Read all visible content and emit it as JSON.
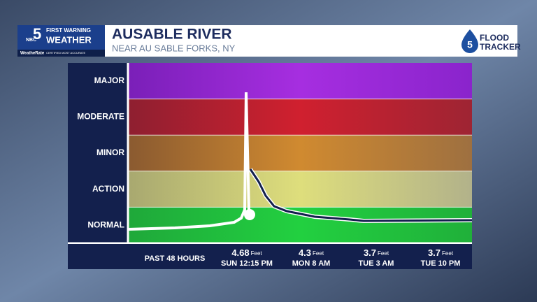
{
  "header": {
    "logo": {
      "network": "NBC",
      "channel": "5",
      "line1": "FIRST WARNING",
      "line2": "WEATHER",
      "line3": "WeatheRate",
      "line4": "CERTIFIED MOST ACCURATE"
    },
    "title": "AUSABLE RIVER",
    "subtitle": "NEAR AU SABLE FORKS, NY",
    "brand": {
      "channel": "5",
      "line1": "FLOOD",
      "line2": "TRACKER"
    }
  },
  "stages": [
    "MAJOR",
    "MODERATE",
    "MINOR",
    "ACTION",
    "NORMAL"
  ],
  "footer": {
    "label": "PAST 48 HOURS",
    "readings": [
      {
        "value": "4.68",
        "unit": "Feet",
        "time": "SUN 12:15 PM"
      },
      {
        "value": "4.3",
        "unit": "Feet",
        "time": "MON 8 AM"
      },
      {
        "value": "3.7",
        "unit": "Feet",
        "time": "TUE 3 AM"
      },
      {
        "value": "3.7",
        "unit": "Feet",
        "time": "TUE 10 PM"
      }
    ]
  }
}
